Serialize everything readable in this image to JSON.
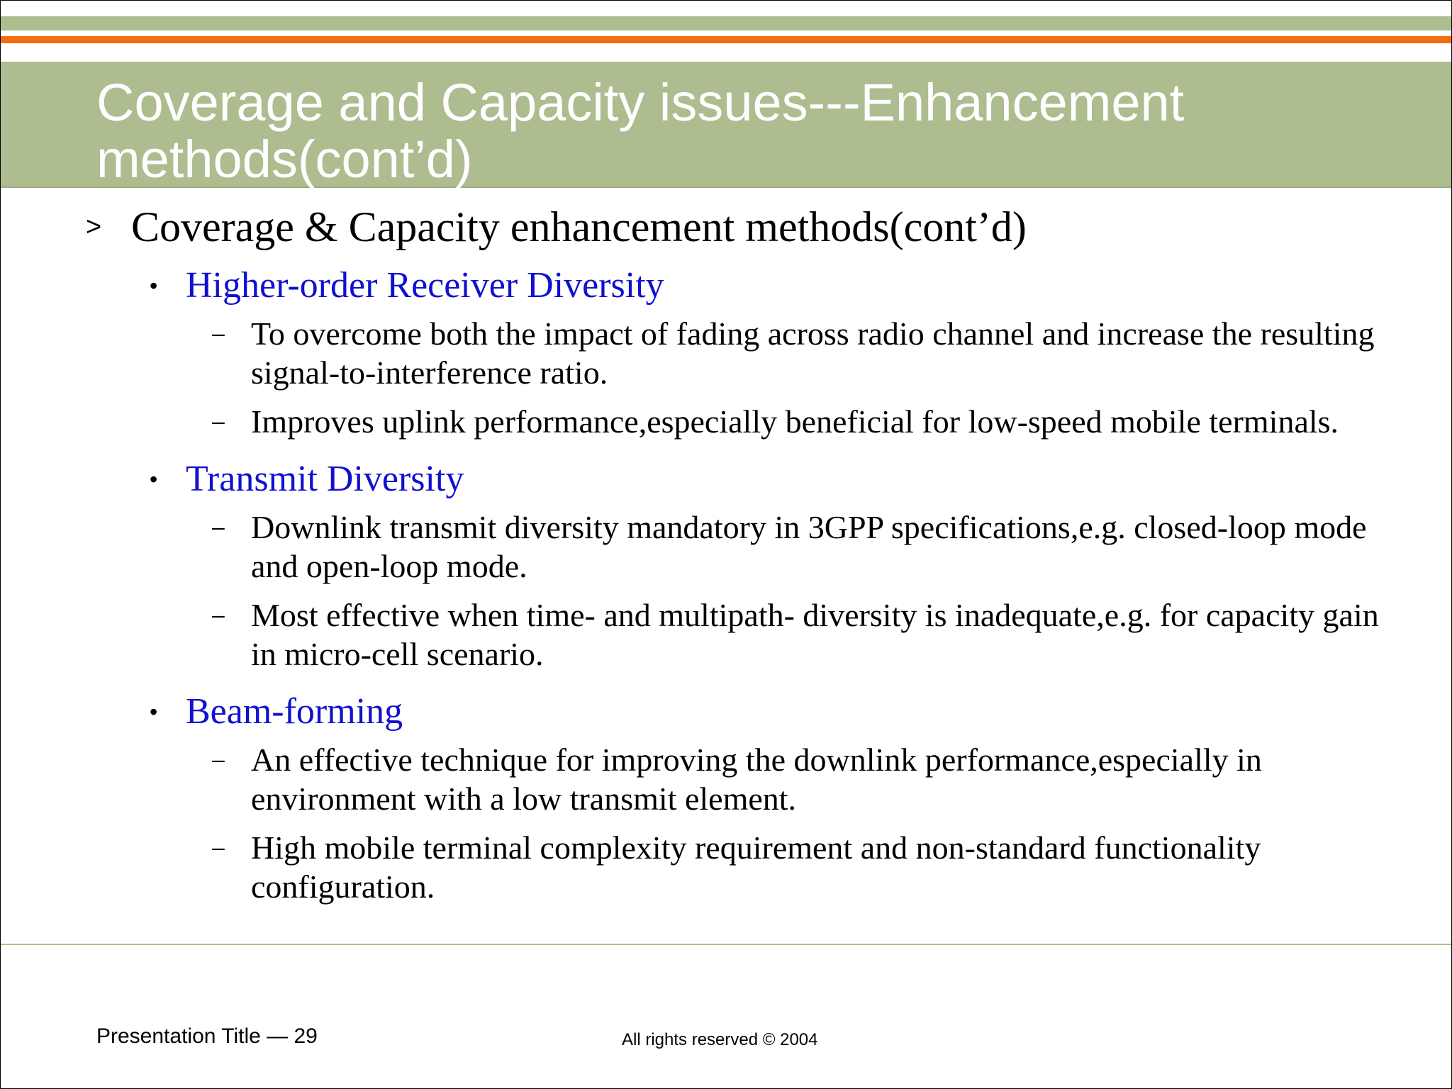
{
  "slide": {
    "title": "Coverage and Capacity issues---Enhancement methods(cont’d)",
    "heading": {
      "marker": ">",
      "text": "Coverage & Capacity enhancement methods(cont’d)"
    },
    "sections": [
      {
        "marker": "•",
        "label": "Higher-order Receiver Diversity",
        "items": [
          {
            "marker": "–",
            "text": "To overcome both the impact of fading across radio channel and increase the resulting signal-to-interference ratio."
          },
          {
            "marker": "–",
            "text": "Improves uplink performance,especially beneficial for low-speed mobile terminals."
          }
        ]
      },
      {
        "marker": "•",
        "label": "Transmit Diversity",
        "items": [
          {
            "marker": "–",
            "text": "Downlink transmit diversity mandatory in 3GPP specifications,e.g. closed-loop mode and open-loop mode."
          },
          {
            "marker": "–",
            "text": "Most effective when time- and multipath- diversity is inadequate,e.g. for capacity gain in micro-cell scenario."
          }
        ]
      },
      {
        "marker": "•",
        "label": "Beam-forming",
        "items": [
          {
            "marker": "–",
            "text": "An effective technique for improving the downlink performance,especially in environment with a low transmit element."
          },
          {
            "marker": "–",
            "text": "High mobile terminal complexity requirement and non-standard functionality configuration."
          }
        ]
      }
    ]
  },
  "footer": {
    "left": "Presentation Title — 29",
    "center": "All rights reserved © 2004"
  },
  "colors": {
    "band": "#adbd8f",
    "stripe": "#f26e12",
    "subheading": "#1010d0"
  }
}
